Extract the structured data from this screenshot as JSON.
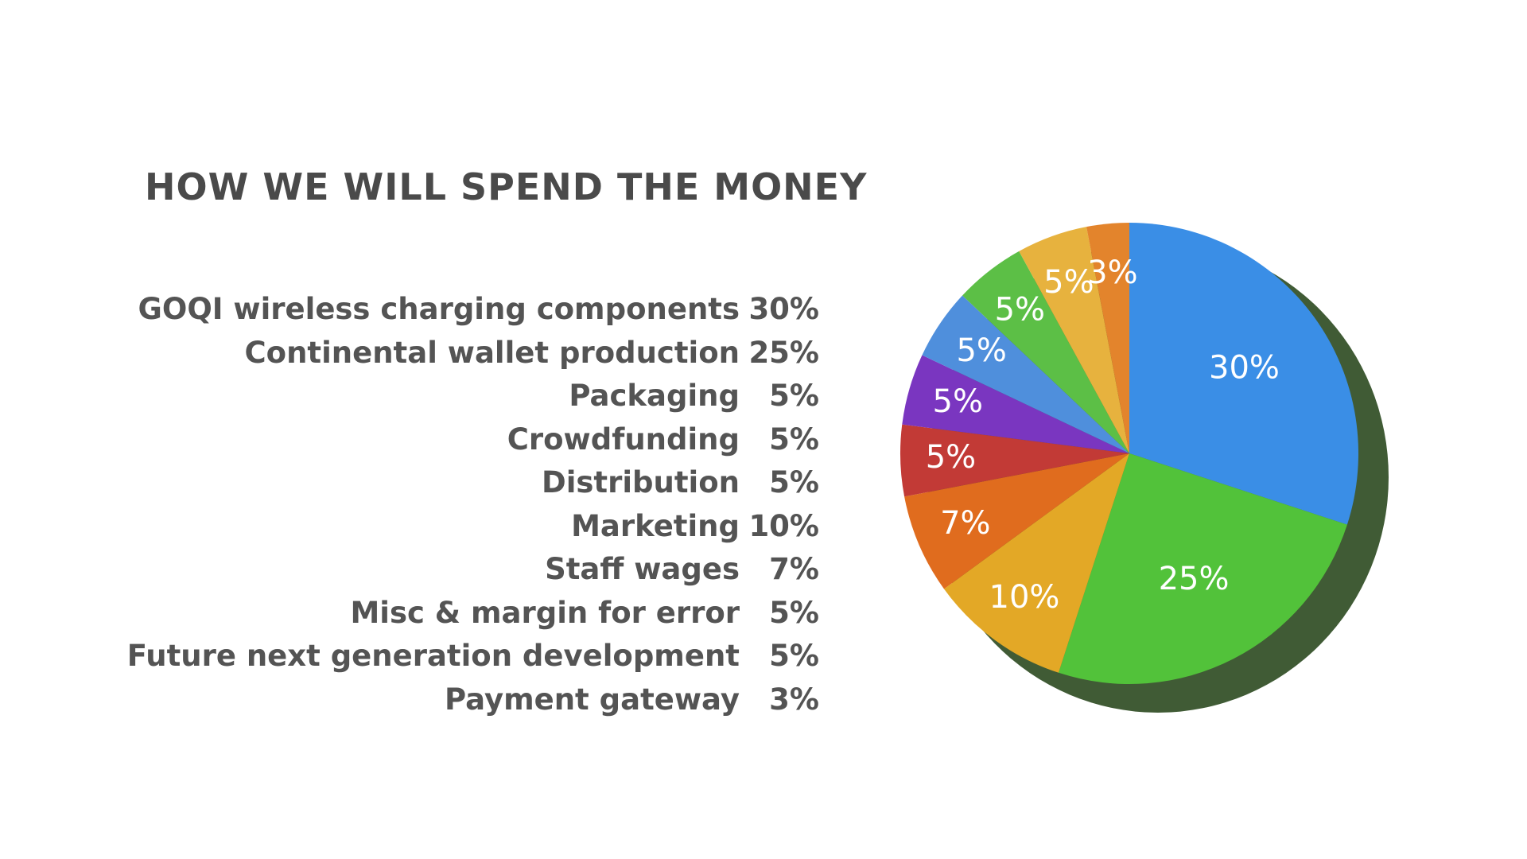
{
  "slide": {
    "title": "HOW WE WILL SPEND THE MONEY"
  },
  "legend": [
    {
      "label": "GOQI wireless charging components",
      "value": "30%"
    },
    {
      "label": "Continental wallet production",
      "value": "25%"
    },
    {
      "label": "Packaging",
      "value": "5%"
    },
    {
      "label": "Crowdfunding",
      "value": "5%"
    },
    {
      "label": "Distribution",
      "value": "5%"
    },
    {
      "label": "Marketing",
      "value": "10%"
    },
    {
      "label": "Staff wages",
      "value": "7%"
    },
    {
      "label": "Misc & margin for error",
      "value": "5%"
    },
    {
      "label": "Future next generation development",
      "value": "5%"
    },
    {
      "label": "Payment gateway",
      "value": "3%"
    }
  ],
  "chart_data": {
    "type": "pie",
    "title": "HOW WE WILL SPEND THE MONEY",
    "slices": [
      {
        "value": 30,
        "label": "30%",
        "color": "#3a8ee6"
      },
      {
        "value": 25,
        "label": "25%",
        "color": "#52c23a"
      },
      {
        "value": 10,
        "label": "10%",
        "color": "#e3a826"
      },
      {
        "value": 7,
        "label": "7%",
        "color": "#e06c1e"
      },
      {
        "value": 5,
        "label": "5%",
        "color": "#c23a36"
      },
      {
        "value": 5,
        "label": "5%",
        "color": "#7a36c0"
      },
      {
        "value": 5,
        "label": "5%",
        "color": "#4f8fdc"
      },
      {
        "value": 5,
        "label": "5%",
        "color": "#5cbf46"
      },
      {
        "value": 5,
        "label": "5%",
        "color": "#e7b23e"
      },
      {
        "value": 3,
        "label": "3%",
        "color": "#e3842c"
      }
    ]
  }
}
